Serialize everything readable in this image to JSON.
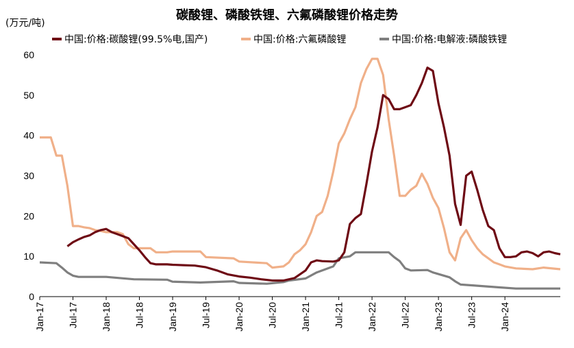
{
  "chart_data": {
    "type": "line",
    "title": "碳酸锂、磷酸铁锂、六氟磷酸锂价格走势",
    "unit_label": "(万元/吨)",
    "xlabel": "",
    "ylabel": "",
    "ylim": [
      0,
      60
    ],
    "y_ticks": [
      "0",
      "10",
      "20",
      "30",
      "40",
      "50",
      "60"
    ],
    "x_ticks": [
      "Jan-17",
      "Jul-17",
      "Jan-18",
      "Jul-18",
      "Jan-19",
      "Jul-19",
      "Jan-20",
      "Jul-20",
      "Jan-21",
      "Jul-21",
      "Jan-22",
      "Jul-22",
      "Jan-23",
      "Jul-23",
      "Jan-24"
    ],
    "x_start": "2017-01",
    "x_end": "2024-11",
    "grid": false,
    "legend": "top",
    "series": [
      {
        "name": "中国:价格:碳酸锂(99.5%电,国产)",
        "color": "#6e0a14",
        "points": [
          [
            "2017-06",
            12.5
          ],
          [
            "2017-07",
            13.5
          ],
          [
            "2017-08",
            14.2
          ],
          [
            "2017-09",
            14.8
          ],
          [
            "2017-10",
            15.2
          ],
          [
            "2017-11",
            16.0
          ],
          [
            "2017-12",
            16.5
          ],
          [
            "2018-01",
            16.8
          ],
          [
            "2018-02",
            16.0
          ],
          [
            "2018-03",
            15.5
          ],
          [
            "2018-04",
            15.0
          ],
          [
            "2018-05",
            14.5
          ],
          [
            "2018-06",
            13.0
          ],
          [
            "2018-07",
            11.5
          ],
          [
            "2018-08",
            9.8
          ],
          [
            "2018-09",
            8.3
          ],
          [
            "2018-10",
            8.0
          ],
          [
            "2018-11",
            8.0
          ],
          [
            "2018-12",
            8.0
          ],
          [
            "2019-01",
            7.9
          ],
          [
            "2019-03",
            7.8
          ],
          [
            "2019-05",
            7.7
          ],
          [
            "2019-07",
            7.3
          ],
          [
            "2019-09",
            6.5
          ],
          [
            "2019-11",
            5.5
          ],
          [
            "2020-01",
            5.0
          ],
          [
            "2020-03",
            4.7
          ],
          [
            "2020-05",
            4.3
          ],
          [
            "2020-07",
            4.0
          ],
          [
            "2020-09",
            4.0
          ],
          [
            "2020-11",
            4.6
          ],
          [
            "2021-01",
            6.5
          ],
          [
            "2021-02",
            8.5
          ],
          [
            "2021-03",
            9.0
          ],
          [
            "2021-04",
            8.8
          ],
          [
            "2021-06",
            8.7
          ],
          [
            "2021-07",
            9.0
          ],
          [
            "2021-08",
            11.0
          ],
          [
            "2021-09",
            18.0
          ],
          [
            "2021-10",
            19.5
          ],
          [
            "2021-11",
            20.5
          ],
          [
            "2021-12",
            28.0
          ],
          [
            "2022-01",
            36.0
          ],
          [
            "2022-02",
            42.0
          ],
          [
            "2022-03",
            50.0
          ],
          [
            "2022-04",
            49.0
          ],
          [
            "2022-05",
            46.5
          ],
          [
            "2022-06",
            46.5
          ],
          [
            "2022-07",
            47.0
          ],
          [
            "2022-08",
            47.5
          ],
          [
            "2022-09",
            50.0
          ],
          [
            "2022-10",
            53.0
          ],
          [
            "2022-11",
            56.8
          ],
          [
            "2022-12",
            56.0
          ],
          [
            "2023-01",
            48.0
          ],
          [
            "2023-02",
            42.0
          ],
          [
            "2023-03",
            35.0
          ],
          [
            "2023-04",
            23.0
          ],
          [
            "2023-05",
            17.8
          ],
          [
            "2023-06",
            30.0
          ],
          [
            "2023-07",
            31.0
          ],
          [
            "2023-08",
            26.5
          ],
          [
            "2023-09",
            21.5
          ],
          [
            "2023-10",
            17.5
          ],
          [
            "2023-11",
            16.5
          ],
          [
            "2023-12",
            12.0
          ],
          [
            "2024-01",
            9.8
          ],
          [
            "2024-02",
            9.8
          ],
          [
            "2024-03",
            10.0
          ],
          [
            "2024-04",
            11.0
          ],
          [
            "2024-05",
            11.2
          ],
          [
            "2024-06",
            10.8
          ],
          [
            "2024-07",
            10.0
          ],
          [
            "2024-08",
            11.0
          ],
          [
            "2024-09",
            11.2
          ],
          [
            "2024-10",
            10.8
          ],
          [
            "2024-11",
            10.5
          ]
        ]
      },
      {
        "name": "中国:价格:六氟磷酸锂",
        "color": "#f0b089",
        "points": [
          [
            "2017-01",
            39.5
          ],
          [
            "2017-03",
            39.5
          ],
          [
            "2017-04",
            35.0
          ],
          [
            "2017-05",
            35.0
          ],
          [
            "2017-06",
            27.5
          ],
          [
            "2017-07",
            17.5
          ],
          [
            "2017-08",
            17.5
          ],
          [
            "2017-09",
            17.2
          ],
          [
            "2017-10",
            17.0
          ],
          [
            "2017-11",
            16.5
          ],
          [
            "2017-12",
            16.3
          ],
          [
            "2018-01",
            16.0
          ],
          [
            "2018-03",
            16.0
          ],
          [
            "2018-04",
            15.5
          ],
          [
            "2018-05",
            13.0
          ],
          [
            "2018-06",
            12.0
          ],
          [
            "2018-09",
            12.0
          ],
          [
            "2018-10",
            11.0
          ],
          [
            "2018-12",
            11.0
          ],
          [
            "2019-01",
            11.2
          ],
          [
            "2019-06",
            11.2
          ],
          [
            "2019-07",
            9.8
          ],
          [
            "2019-12",
            9.5
          ],
          [
            "2020-01",
            8.7
          ],
          [
            "2020-06",
            8.3
          ],
          [
            "2020-07",
            7.2
          ],
          [
            "2020-09",
            7.5
          ],
          [
            "2020-10",
            8.5
          ],
          [
            "2020-11",
            10.5
          ],
          [
            "2020-12",
            11.5
          ],
          [
            "2021-01",
            13.0
          ],
          [
            "2021-02",
            16.0
          ],
          [
            "2021-03",
            20.0
          ],
          [
            "2021-04",
            21.0
          ],
          [
            "2021-05",
            25.0
          ],
          [
            "2021-06",
            31.0
          ],
          [
            "2021-07",
            38.0
          ],
          [
            "2021-08",
            40.5
          ],
          [
            "2021-09",
            44.0
          ],
          [
            "2021-10",
            47.0
          ],
          [
            "2021-11",
            53.0
          ],
          [
            "2021-12",
            56.5
          ],
          [
            "2022-01",
            59.0
          ],
          [
            "2022-02",
            59.0
          ],
          [
            "2022-03",
            55.0
          ],
          [
            "2022-04",
            44.0
          ],
          [
            "2022-05",
            35.0
          ],
          [
            "2022-06",
            25.0
          ],
          [
            "2022-07",
            25.0
          ],
          [
            "2022-08",
            26.5
          ],
          [
            "2022-09",
            27.5
          ],
          [
            "2022-10",
            30.5
          ],
          [
            "2022-11",
            28.0
          ],
          [
            "2022-12",
            24.5
          ],
          [
            "2023-01",
            22.0
          ],
          [
            "2023-02",
            17.0
          ],
          [
            "2023-03",
            11.0
          ],
          [
            "2023-04",
            9.0
          ],
          [
            "2023-05",
            14.5
          ],
          [
            "2023-06",
            16.5
          ],
          [
            "2023-07",
            14.0
          ],
          [
            "2023-08",
            12.0
          ],
          [
            "2023-09",
            10.5
          ],
          [
            "2023-10",
            9.5
          ],
          [
            "2023-11",
            8.5
          ],
          [
            "2023-12",
            8.0
          ],
          [
            "2024-01",
            7.5
          ],
          [
            "2024-03",
            7.0
          ],
          [
            "2024-06",
            6.8
          ],
          [
            "2024-08",
            7.2
          ],
          [
            "2024-11",
            6.8
          ]
        ]
      },
      {
        "name": "中国:价格:电解液:磷酸铁锂",
        "color": "#7f7f7f",
        "points": [
          [
            "2017-01",
            8.5
          ],
          [
            "2017-04",
            8.3
          ],
          [
            "2017-05",
            7.2
          ],
          [
            "2017-06",
            6.0
          ],
          [
            "2017-07",
            5.2
          ],
          [
            "2017-08",
            4.9
          ],
          [
            "2018-01",
            4.9
          ],
          [
            "2018-06",
            4.3
          ],
          [
            "2018-12",
            4.2
          ],
          [
            "2019-01",
            3.7
          ],
          [
            "2019-06",
            3.5
          ],
          [
            "2019-12",
            3.8
          ],
          [
            "2020-01",
            3.4
          ],
          [
            "2020-06",
            3.2
          ],
          [
            "2020-09",
            3.6
          ],
          [
            "2020-10",
            4.0
          ],
          [
            "2021-01",
            4.5
          ],
          [
            "2021-03",
            6.0
          ],
          [
            "2021-06",
            7.5
          ],
          [
            "2021-07",
            9.5
          ],
          [
            "2021-09",
            10.0
          ],
          [
            "2021-10",
            11.0
          ],
          [
            "2022-04",
            11.0
          ],
          [
            "2022-05",
            9.8
          ],
          [
            "2022-06",
            8.8
          ],
          [
            "2022-07",
            7.0
          ],
          [
            "2022-08",
            6.5
          ],
          [
            "2022-11",
            6.6
          ],
          [
            "2022-12",
            6.0
          ],
          [
            "2023-03",
            4.8
          ],
          [
            "2023-04",
            3.8
          ],
          [
            "2023-05",
            3.0
          ],
          [
            "2023-07",
            2.8
          ],
          [
            "2023-12",
            2.3
          ],
          [
            "2024-03",
            2.0
          ],
          [
            "2024-11",
            2.0
          ]
        ]
      }
    ]
  }
}
